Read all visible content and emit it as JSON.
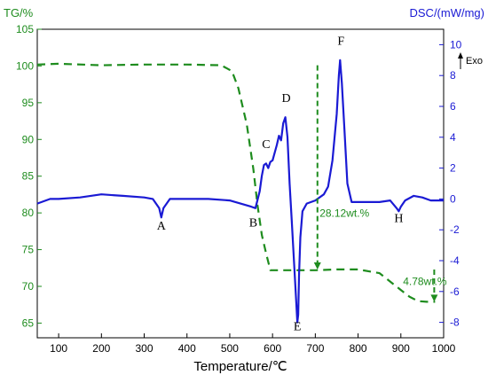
{
  "chart_data": {
    "type": "line",
    "xlabel": "Temperature/℃",
    "y_left_label": "TG/%",
    "y_right_label": "DSC/(mW/mg)",
    "exo_label": "Exo",
    "xlim": [
      50,
      1000
    ],
    "y_left_lim": [
      63,
      105
    ],
    "y_right_lim": [
      -9,
      11
    ],
    "x_ticks": [
      100,
      200,
      300,
      400,
      500,
      600,
      700,
      800,
      900,
      1000
    ],
    "y_left_ticks": [
      65,
      70,
      75,
      80,
      85,
      90,
      95,
      100,
      105
    ],
    "y_right_ticks": [
      -8,
      -6,
      -4,
      -2,
      0,
      2,
      4,
      6,
      8,
      10
    ],
    "colors": {
      "tg": "#1e8c1e",
      "dsc": "#1a1ad4",
      "left_axis": "#1e8c1e",
      "right_axis": "#1a1ad4"
    },
    "series": [
      {
        "axis": "left",
        "style": "dashed",
        "x": [
          50,
          100,
          200,
          300,
          400,
          480,
          505,
          520,
          540,
          555,
          565,
          575,
          585,
          595,
          650,
          700,
          750,
          800,
          850,
          900,
          920,
          940,
          960,
          980
        ],
        "y": [
          100.2,
          100.3,
          100.1,
          100.2,
          100.2,
          100.1,
          99.3,
          97.0,
          92.0,
          86.0,
          81.0,
          77.0,
          74.5,
          72.2,
          72.2,
          72.2,
          72.3,
          72.3,
          71.8,
          69.5,
          68.6,
          68.0,
          67.9,
          67.9
        ]
      },
      {
        "axis": "right",
        "style": "solid",
        "x": [
          50,
          80,
          100,
          150,
          200,
          250,
          300,
          320,
          335,
          340,
          345,
          360,
          400,
          450,
          500,
          525,
          550,
          560,
          570,
          575,
          580,
          585,
          590,
          595,
          600,
          610,
          615,
          620,
          625,
          630,
          635,
          640,
          645,
          650,
          655,
          658,
          660,
          662,
          665,
          670,
          680,
          700,
          720,
          730,
          740,
          750,
          755,
          758,
          762,
          768,
          775,
          785,
          800,
          850,
          875,
          890,
          895,
          900,
          910,
          930,
          950,
          970,
          1000
        ],
        "y": [
          -0.3,
          0.0,
          0.0,
          0.1,
          0.3,
          0.2,
          0.1,
          0.0,
          -0.6,
          -1.2,
          -0.6,
          0.0,
          0.0,
          0.0,
          -0.1,
          -0.3,
          -0.5,
          -0.6,
          0.5,
          1.5,
          2.2,
          2.3,
          2.0,
          2.4,
          2.5,
          3.5,
          4.1,
          3.8,
          4.9,
          5.3,
          4.0,
          1.0,
          -1.5,
          -4.0,
          -6.5,
          -8.0,
          -7.5,
          -5.0,
          -2.5,
          -0.8,
          -0.3,
          -0.1,
          0.3,
          0.8,
          2.5,
          5.5,
          8.0,
          9.0,
          7.5,
          4.5,
          1.0,
          -0.2,
          -0.2,
          -0.2,
          -0.1,
          -0.6,
          -0.8,
          -0.5,
          -0.1,
          0.2,
          0.1,
          -0.1,
          -0.1
        ]
      }
    ],
    "point_labels": [
      {
        "text": "A",
        "x": 340,
        "axis": "right",
        "y": -2.0
      },
      {
        "text": "B",
        "x": 555,
        "axis": "right",
        "y": -1.8
      },
      {
        "text": "C",
        "x": 585,
        "axis": "right",
        "y": 3.3
      },
      {
        "text": "D",
        "x": 632,
        "axis": "right",
        "y": 6.3
      },
      {
        "text": "E",
        "x": 658,
        "axis": "right",
        "y": -8.5
      },
      {
        "text": "F",
        "x": 760,
        "axis": "right",
        "y": 10.0
      },
      {
        "text": "H",
        "x": 895,
        "axis": "right",
        "y": -1.5
      }
    ],
    "annotations": [
      {
        "text": "28.12wt.%",
        "bracket_x": 705,
        "y_from": 100.1,
        "y_to": 72.3,
        "label_x": 710,
        "label_y": 79.5
      },
      {
        "text": "4.78wt.%",
        "bracket_x": 978,
        "y_from": 72.3,
        "y_to": 67.9,
        "label_x": 905,
        "label_y": 70.2
      }
    ]
  }
}
